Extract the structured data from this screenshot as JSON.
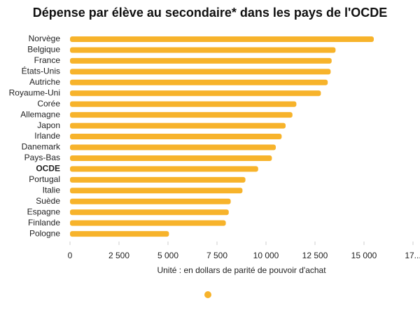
{
  "chart_data": {
    "type": "bar",
    "orientation": "horizontal",
    "title": "Dépense par élève au secondaire* dans les pays de l'OCDE",
    "x_label": "Unité : en dollars de parité de pouvoir d'achat",
    "categories": [
      "Norvège",
      "Belgique",
      "France",
      "États-Unis",
      "Autriche",
      "Royaume-Uni",
      "Corée",
      "Allemagne",
      "Japon",
      "Irlande",
      "Danemark",
      "Pays-Bas",
      "OCDE",
      "Portugal",
      "Italie",
      "Suède",
      "Espagne",
      "Finlande",
      "Pologne"
    ],
    "values": [
      15500,
      13550,
      13350,
      13300,
      13150,
      12800,
      11550,
      11350,
      11000,
      10800,
      10500,
      10300,
      9600,
      8950,
      8800,
      8200,
      8100,
      7950,
      5050
    ],
    "bold_category": 12,
    "color": "#f7b32b",
    "xlim": [
      0,
      17500
    ],
    "xticks": [
      0,
      {
        "value": 2500,
        "label": "2 500"
      },
      {
        "value": 5000,
        "label": "5 000"
      },
      {
        "value": 7500,
        "label": "7 500"
      },
      {
        "value": 10000,
        "label": "10 000"
      },
      {
        "value": 12500,
        "label": "12 500"
      },
      {
        "value": 15000,
        "label": "15 000"
      },
      {
        "value": 17500,
        "label": "17..."
      }
    ],
    "grid": false
  }
}
